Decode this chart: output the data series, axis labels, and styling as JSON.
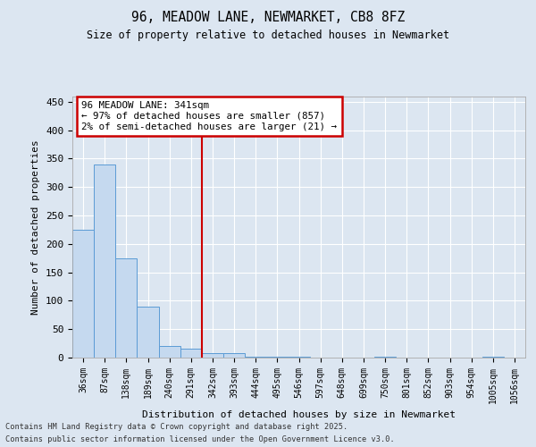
{
  "title_line1": "96, MEADOW LANE, NEWMARKET, CB8 8FZ",
  "title_line2": "Size of property relative to detached houses in Newmarket",
  "xlabel": "Distribution of detached houses by size in Newmarket",
  "ylabel": "Number of detached properties",
  "bin_labels": [
    "36sqm",
    "87sqm",
    "138sqm",
    "189sqm",
    "240sqm",
    "291sqm",
    "342sqm",
    "393sqm",
    "444sqm",
    "495sqm",
    "546sqm",
    "597sqm",
    "648sqm",
    "699sqm",
    "750sqm",
    "801sqm",
    "852sqm",
    "903sqm",
    "954sqm",
    "1005sqm",
    "1056sqm"
  ],
  "bar_values": [
    225,
    340,
    175,
    90,
    20,
    15,
    8,
    8,
    2,
    2,
    1,
    0,
    0,
    0,
    1,
    0,
    0,
    0,
    0,
    1,
    0
  ],
  "bar_color": "#c5d9ef",
  "bar_edge_color": "#5b9bd5",
  "vline_color": "#cc0000",
  "vline_x_index": 6,
  "annotation_line1": "96 MEADOW LANE: 341sqm",
  "annotation_line2": "← 97% of detached houses are smaller (857)",
  "annotation_line3": "2% of semi-detached houses are larger (21) →",
  "annotation_box_color": "#ffffff",
  "annotation_box_edge_color": "#cc0000",
  "ylim": [
    0,
    460
  ],
  "yticks": [
    0,
    50,
    100,
    150,
    200,
    250,
    300,
    350,
    400,
    450
  ],
  "background_color": "#dce6f1",
  "plot_bg_color": "#dce6f1",
  "grid_color": "#ffffff",
  "footer_line1": "Contains HM Land Registry data © Crown copyright and database right 2025.",
  "footer_line2": "Contains public sector information licensed under the Open Government Licence v3.0."
}
